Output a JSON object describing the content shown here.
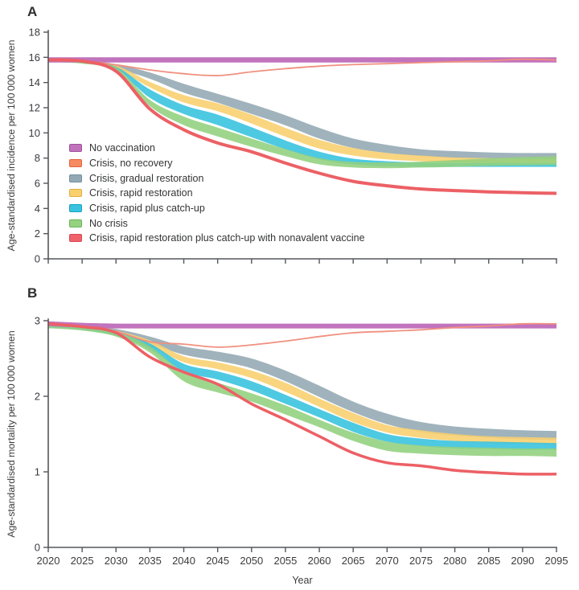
{
  "figure": {
    "panel_a_label": "A",
    "panel_b_label": "B",
    "x_axis_label": "Year"
  },
  "colors": {
    "axis": "#54565b",
    "no_vaccination": "#c273bd",
    "crisis_no_recovery_line": "#f0907f",
    "crisis_gradual_restoration": "#93a8b3",
    "crisis_rapid_restoration": "#f8cf6d",
    "crisis_rapid_plus_catchup": "#35c2de",
    "no_crisis": "#92d07e",
    "nonavalent": "#ec6065"
  },
  "legend": {
    "items": [
      {
        "label": "No vaccination",
        "fill": "#c172bb",
        "border": "#9d539b"
      },
      {
        "label": "Crisis, no recovery",
        "fill": "#f68a60",
        "border": "#e4633e"
      },
      {
        "label": "Crisis, gradual restoration",
        "fill": "#95a9b4",
        "border": "#71909f"
      },
      {
        "label": "Crisis, rapid restoration",
        "fill": "#f8d06e",
        "border": "#e3ae45"
      },
      {
        "label": "Crisis, rapid plus catch-up",
        "fill": "#3ac2df",
        "border": "#14a3c4"
      },
      {
        "label": "No crisis",
        "fill": "#96d27f",
        "border": "#67b459"
      },
      {
        "label": "Crisis, rapid restoration plus catch-up with nonavalent vaccine",
        "fill": "#ef626a",
        "border": "#dc4553"
      }
    ]
  },
  "chart_data": [
    {
      "type": "area",
      "panel": "A",
      "ylabel": "Age-standardised incidence per 100 000 women",
      "xlabel": "",
      "xlim": [
        2020,
        2095
      ],
      "ylim": [
        0,
        18
      ],
      "yticks": [
        0,
        2,
        4,
        6,
        8,
        10,
        12,
        14,
        16,
        18
      ],
      "xticks": [
        2020,
        2025,
        2030,
        2035,
        2040,
        2045,
        2050,
        2055,
        2060,
        2065,
        2070,
        2075,
        2080,
        2085,
        2090,
        2095
      ],
      "years": [
        2020,
        2025,
        2030,
        2035,
        2040,
        2045,
        2050,
        2055,
        2060,
        2065,
        2070,
        2075,
        2080,
        2085,
        2090,
        2095
      ],
      "series": [
        {
          "name": "Crisis, gradual restoration",
          "style": "band",
          "color": "#93a8b3",
          "upper": [
            15.9,
            15.8,
            15.45,
            14.8,
            13.9,
            13.1,
            12.3,
            11.4,
            10.4,
            9.55,
            9.05,
            8.7,
            8.55,
            8.45,
            8.4,
            8.4
          ],
          "lower": [
            15.7,
            15.6,
            15.1,
            14.3,
            13.2,
            12.4,
            11.5,
            10.6,
            9.55,
            8.8,
            8.4,
            8.15,
            8.0,
            7.95,
            7.9,
            7.9
          ]
        },
        {
          "name": "Crisis, rapid restoration",
          "style": "band",
          "color": "#f8cf6d",
          "upper": [
            15.85,
            15.75,
            15.35,
            14.05,
            13.0,
            12.35,
            11.45,
            10.4,
            9.45,
            8.8,
            8.4,
            8.2,
            8.05,
            8.0,
            7.95,
            7.95
          ],
          "lower": [
            15.7,
            15.6,
            15.05,
            13.62,
            12.42,
            11.72,
            10.75,
            9.7,
            8.75,
            8.2,
            7.9,
            7.75,
            7.65,
            7.6,
            7.6,
            7.6
          ]
        },
        {
          "name": "Crisis, rapid plus catch-up",
          "style": "band",
          "color": "#35c2de",
          "upper": [
            15.8,
            15.7,
            15.25,
            13.45,
            12.2,
            11.45,
            10.45,
            9.4,
            8.5,
            7.95,
            7.75,
            7.65,
            7.6,
            7.6,
            7.6,
            7.6
          ],
          "lower": [
            15.65,
            15.55,
            15.0,
            12.78,
            11.5,
            10.62,
            9.65,
            8.7,
            7.9,
            7.5,
            7.35,
            7.3,
            7.3,
            7.3,
            7.3,
            7.3
          ]
        },
        {
          "name": "No crisis",
          "style": "band",
          "color": "#92d07e",
          "upper": [
            15.75,
            15.65,
            15.2,
            12.62,
            11.3,
            10.42,
            9.55,
            8.72,
            8.0,
            7.7,
            7.65,
            7.72,
            7.85,
            7.98,
            8.08,
            8.15
          ],
          "lower": [
            15.6,
            15.5,
            14.9,
            12.12,
            10.62,
            9.72,
            8.9,
            8.15,
            7.5,
            7.25,
            7.2,
            7.25,
            7.3,
            7.38,
            7.42,
            7.45
          ]
        },
        {
          "name": "No vaccination",
          "style": "line",
          "color": "#c273bd",
          "width": 6.5,
          "values": [
            15.8,
            15.8,
            15.8,
            15.8,
            15.8,
            15.8,
            15.8,
            15.8,
            15.8,
            15.8,
            15.8,
            15.8,
            15.8,
            15.8,
            15.8,
            15.8
          ]
        },
        {
          "name": "Crisis, no recovery",
          "style": "line",
          "color": "#f0907f",
          "width": 1.8,
          "values": [
            15.8,
            15.72,
            15.4,
            15.0,
            14.7,
            14.55,
            14.85,
            15.1,
            15.3,
            15.42,
            15.5,
            15.58,
            15.65,
            15.72,
            15.85,
            15.78
          ]
        },
        {
          "name": "Crisis, rapid restoration plus catch-up with nonavalent vaccine",
          "style": "line",
          "color": "#ec6065",
          "width": 4,
          "values": [
            15.8,
            15.7,
            14.9,
            11.9,
            10.25,
            9.2,
            8.5,
            7.6,
            6.8,
            6.15,
            5.8,
            5.55,
            5.42,
            5.32,
            5.25,
            5.2
          ]
        }
      ]
    },
    {
      "type": "area",
      "panel": "B",
      "ylabel": "Age-standardised mortality per 100 000 women",
      "xlabel": "Year",
      "xlim": [
        2020,
        2095
      ],
      "ylim": [
        0,
        3
      ],
      "yticks": [
        0,
        1,
        2,
        3
      ],
      "xticks": [
        2020,
        2025,
        2030,
        2035,
        2040,
        2045,
        2050,
        2055,
        2060,
        2065,
        2070,
        2075,
        2080,
        2085,
        2090,
        2095
      ],
      "years": [
        2020,
        2025,
        2030,
        2035,
        2040,
        2045,
        2050,
        2055,
        2060,
        2065,
        2070,
        2075,
        2080,
        2085,
        2090,
        2095
      ],
      "series": [
        {
          "name": "Crisis, gradual restoration",
          "style": "band",
          "color": "#93a8b3",
          "upper": [
            2.98,
            2.95,
            2.89,
            2.79,
            2.66,
            2.59,
            2.5,
            2.34,
            2.14,
            1.93,
            1.77,
            1.66,
            1.6,
            1.57,
            1.55,
            1.54
          ],
          "lower": [
            2.93,
            2.9,
            2.83,
            2.7,
            2.55,
            2.47,
            2.37,
            2.2,
            1.99,
            1.79,
            1.63,
            1.53,
            1.48,
            1.45,
            1.43,
            1.42
          ]
        },
        {
          "name": "Crisis, rapid restoration",
          "style": "band",
          "color": "#f8cf6d",
          "upper": [
            2.97,
            2.94,
            2.87,
            2.74,
            2.53,
            2.45,
            2.34,
            2.18,
            1.97,
            1.78,
            1.62,
            1.55,
            1.5,
            1.47,
            1.46,
            1.45
          ],
          "lower": [
            2.92,
            2.89,
            2.81,
            2.66,
            2.45,
            2.36,
            2.24,
            2.06,
            1.86,
            1.66,
            1.52,
            1.45,
            1.41,
            1.38,
            1.37,
            1.36
          ]
        },
        {
          "name": "Crisis, rapid plus catch-up",
          "style": "band",
          "color": "#35c2de",
          "upper": [
            2.96,
            2.93,
            2.86,
            2.7,
            2.43,
            2.33,
            2.2,
            2.02,
            1.83,
            1.65,
            1.5,
            1.44,
            1.41,
            1.4,
            1.39,
            1.38
          ],
          "lower": [
            2.91,
            2.88,
            2.8,
            2.62,
            2.33,
            2.22,
            2.08,
            1.9,
            1.72,
            1.53,
            1.4,
            1.34,
            1.31,
            1.3,
            1.29,
            1.29
          ]
        },
        {
          "name": "No crisis",
          "style": "band",
          "color": "#92d07e",
          "upper": [
            2.95,
            2.92,
            2.85,
            2.66,
            2.32,
            2.18,
            2.04,
            1.88,
            1.69,
            1.52,
            1.4,
            1.35,
            1.33,
            1.32,
            1.31,
            1.31
          ],
          "lower": [
            2.9,
            2.87,
            2.79,
            2.58,
            2.2,
            2.05,
            1.93,
            1.76,
            1.59,
            1.41,
            1.28,
            1.24,
            1.22,
            1.21,
            1.21,
            1.2
          ]
        },
        {
          "name": "No vaccination",
          "style": "line",
          "color": "#c273bd",
          "width": 6,
          "values": [
            2.96,
            2.94,
            2.93,
            2.93,
            2.93,
            2.93,
            2.93,
            2.93,
            2.93,
            2.93,
            2.93,
            2.93,
            2.93,
            2.93,
            2.93,
            2.93
          ]
        },
        {
          "name": "Crisis, no recovery",
          "style": "line",
          "color": "#f0907f",
          "width": 1.8,
          "values": [
            2.96,
            2.93,
            2.86,
            2.72,
            2.69,
            2.65,
            2.68,
            2.73,
            2.79,
            2.84,
            2.86,
            2.88,
            2.91,
            2.93,
            2.96,
            2.96
          ]
        },
        {
          "name": "Crisis, rapid restoration plus catch-up with nonavalent vaccine",
          "style": "line",
          "color": "#ec6065",
          "width": 3.5,
          "values": [
            2.96,
            2.92,
            2.84,
            2.52,
            2.32,
            2.16,
            1.9,
            1.69,
            1.47,
            1.25,
            1.12,
            1.08,
            1.02,
            0.99,
            0.97,
            0.97
          ]
        }
      ]
    }
  ]
}
